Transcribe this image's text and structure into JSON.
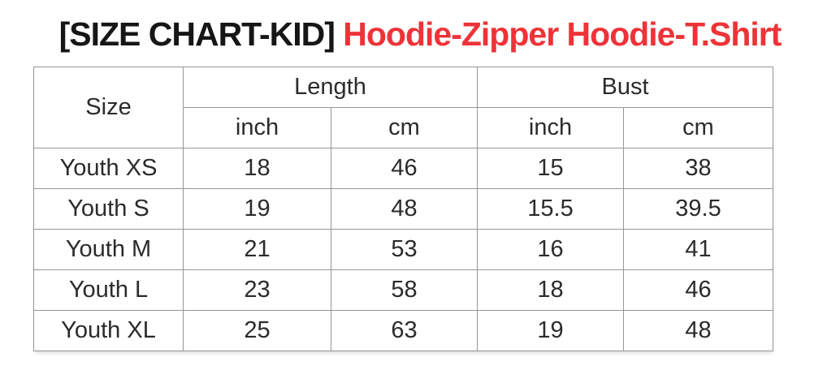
{
  "title": {
    "black": "[SIZE CHART-KID] ",
    "red": "Hoodie-Zipper Hoodie-T.Shirt",
    "red_color": "#ee3338",
    "black_color": "#161616"
  },
  "table": {
    "size_header": "Size",
    "groups": [
      {
        "label": "Length",
        "sub": [
          "inch",
          "cm"
        ]
      },
      {
        "label": "Bust",
        "sub": [
          "inch",
          "cm"
        ]
      }
    ],
    "rows": [
      {
        "size": "Youth XS",
        "values": [
          "18",
          "46",
          "15",
          "38"
        ]
      },
      {
        "size": "Youth S",
        "values": [
          "19",
          "48",
          "15.5",
          "39.5"
        ]
      },
      {
        "size": "Youth M",
        "values": [
          "21",
          "53",
          "16",
          "41"
        ]
      },
      {
        "size": "Youth L",
        "values": [
          "23",
          "58",
          "18",
          "46"
        ]
      },
      {
        "size": "Youth XL",
        "values": [
          "25",
          "63",
          "19",
          "48"
        ]
      }
    ],
    "border_color": "#969696",
    "text_color": "#2b2b2b"
  }
}
